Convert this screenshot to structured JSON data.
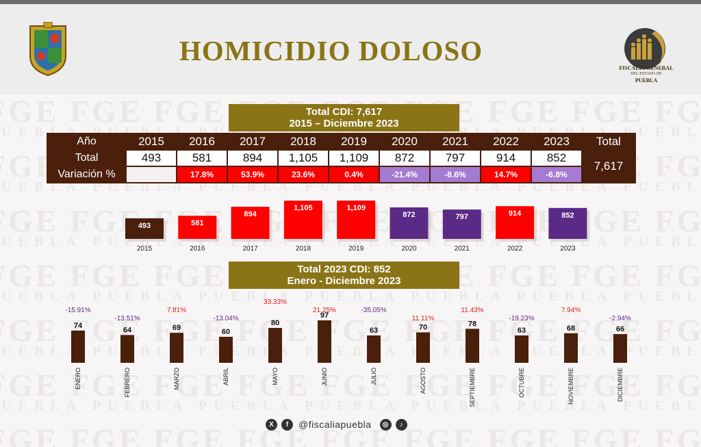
{
  "header": {
    "title": "HOMICIDIO DOLOSO",
    "org_line1": "FISCALÍA GENERAL",
    "org_line2": "DEL ESTADO DE",
    "org_line3": "PUEBLA"
  },
  "watermark": {
    "big": "FGE",
    "small": "PUEBLA"
  },
  "banner1": {
    "line1": "Total CDI: 7,617",
    "line2": "2015 – Diciembre 2023"
  },
  "banner2": {
    "line1": "Total 2023 CDI: 852",
    "line2": "Enero - Diciembre 2023"
  },
  "table": {
    "row_labels": [
      "Año",
      "Total",
      "Variación %"
    ],
    "total_header": "Total",
    "total_value": "7,617"
  },
  "social": {
    "handle": "@fiscaliapuebla"
  },
  "colors": {
    "gold": "#8a7416",
    "brown": "#4a1f0c",
    "red": "#ff0000",
    "purple": "#5b2a86",
    "light_purple": "#a57ad1"
  },
  "chart_data": [
    {
      "type": "bar",
      "categories": [
        "2015",
        "2016",
        "2017",
        "2018",
        "2019",
        "2020",
        "2021",
        "2022",
        "2023"
      ],
      "values": [
        493,
        581,
        894,
        1105,
        1109,
        872,
        797,
        914,
        852
      ],
      "value_labels": [
        "493",
        "581",
        "894",
        "1,105",
        "1,109",
        "872",
        "797",
        "914",
        "852"
      ],
      "variation": [
        "",
        "17.8%",
        "53.9%",
        "23.6%",
        "0.4%",
        "-21.4%",
        "-8.6%",
        "14.7%",
        "-6.8%"
      ],
      "bar_colors": [
        "#4a1f0c",
        "#ff0000",
        "#ff0000",
        "#ff0000",
        "#ff0000",
        "#5b2a86",
        "#5b2a86",
        "#ff0000",
        "#5b2a86"
      ]
    },
    {
      "type": "bar",
      "categories": [
        "ENERO",
        "FEBRERO",
        "MARZO",
        "ABRIL",
        "MAYO",
        "JUNIO",
        "JULIO",
        "AGOSTO",
        "SEPTIEMBRE",
        "OCTUBRE",
        "NOVIEMBRE",
        "DICIEMBRE"
      ],
      "values": [
        74,
        64,
        69,
        60,
        80,
        97,
        63,
        70,
        78,
        63,
        68,
        66
      ],
      "variation": [
        "-15.91%",
        "-13.51%",
        "7.81%",
        "-13.04%",
        "33.33%",
        "21.25%",
        "-35.05%",
        "11.11%",
        "11.43%",
        "-19.23%",
        "7.94%",
        "-2.94%"
      ],
      "bar_color": "#4a1f0c"
    }
  ]
}
